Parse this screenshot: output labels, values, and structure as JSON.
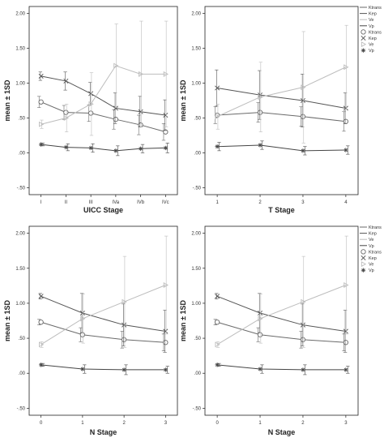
{
  "chart_data": [
    {
      "type": "line",
      "xlabel": "UICC Stage",
      "ylabel": "mean ± 1SD",
      "categories": [
        "I",
        "II",
        "III",
        "IVa",
        "IVb",
        "IVc"
      ],
      "y_ticks": [
        "-.50",
        ".00",
        ".50",
        "1.00",
        "1.50",
        "2.00"
      ],
      "ylim": [
        -0.6,
        2.1
      ],
      "grid": false,
      "series": [
        {
          "name": "Ktrans",
          "marker": "circle",
          "color": "#6a6a6a",
          "values": [
            0.73,
            0.58,
            0.57,
            0.48,
            0.4,
            0.3
          ],
          "sd": [
            0.08,
            0.1,
            0.12,
            0.14,
            0.14,
            0.12
          ]
        },
        {
          "name": "Kep",
          "marker": "x",
          "color": "#555555",
          "values": [
            1.1,
            1.03,
            0.85,
            0.64,
            0.59,
            0.54
          ],
          "sd": [
            0.06,
            0.13,
            0.16,
            0.22,
            0.22,
            0.22
          ]
        },
        {
          "name": "Ve",
          "marker": "tri",
          "color": "#bdbdbd",
          "values": [
            0.41,
            0.5,
            0.7,
            1.25,
            1.13,
            1.13
          ],
          "sd": [
            0.06,
            0.2,
            0.45,
            0.6,
            0.76,
            0.76
          ]
        },
        {
          "name": "Vp",
          "marker": "star",
          "color": "#454545",
          "values": [
            0.12,
            0.08,
            0.07,
            0.03,
            0.06,
            0.07
          ],
          "sd": [
            0.02,
            0.05,
            0.06,
            0.07,
            0.06,
            0.07
          ]
        }
      ]
    },
    {
      "type": "line",
      "xlabel": "T Stage",
      "ylabel": "mean ± 1SD",
      "categories": [
        "1",
        "2",
        "3",
        "4"
      ],
      "y_ticks": [
        "-.50",
        ".00",
        ".50",
        "1.00",
        "1.50",
        "2.00"
      ],
      "ylim": [
        -0.6,
        2.1
      ],
      "grid": false,
      "legend": {
        "position": "top-right",
        "lines": [
          "Ktrans",
          "Kep",
          "Ve",
          "Vp"
        ],
        "markers": [
          "Ktrans",
          "Kep",
          "Ve",
          "Vp"
        ]
      },
      "series": [
        {
          "name": "Ktrans",
          "marker": "circle",
          "color": "#6a6a6a",
          "values": [
            0.54,
            0.58,
            0.52,
            0.45
          ],
          "sd": [
            0.12,
            0.14,
            0.14,
            0.14
          ]
        },
        {
          "name": "Kep",
          "marker": "x",
          "color": "#555555",
          "values": [
            0.93,
            0.83,
            0.75,
            0.64
          ],
          "sd": [
            0.26,
            0.35,
            0.38,
            0.22
          ]
        },
        {
          "name": "Ve",
          "marker": "tri",
          "color": "#bdbdbd",
          "values": [
            0.52,
            0.8,
            0.94,
            1.23
          ],
          "sd": [
            0.18,
            0.5,
            0.8,
            0.6
          ]
        },
        {
          "name": "Vp",
          "marker": "star",
          "color": "#454545",
          "values": [
            0.09,
            0.11,
            0.03,
            0.04
          ],
          "sd": [
            0.06,
            0.06,
            0.06,
            0.06
          ]
        }
      ]
    },
    {
      "type": "line",
      "xlabel": "N Stage",
      "ylabel": "mean ± 1SD",
      "categories": [
        "0",
        "1",
        "2",
        "3"
      ],
      "y_ticks": [
        "-.50",
        ".00",
        ".50",
        "1.00",
        "1.50",
        "2.00"
      ],
      "ylim": [
        -0.6,
        2.1
      ],
      "grid": false,
      "series": [
        {
          "name": "Ktrans",
          "marker": "circle",
          "color": "#6a6a6a",
          "values": [
            0.73,
            0.55,
            0.48,
            0.44
          ],
          "sd": [
            0.04,
            0.1,
            0.12,
            0.12
          ]
        },
        {
          "name": "Kep",
          "marker": "x",
          "color": "#555555",
          "values": [
            1.1,
            0.86,
            0.69,
            0.6
          ],
          "sd": [
            0.04,
            0.28,
            0.3,
            0.3
          ]
        },
        {
          "name": "Ve",
          "marker": "tri",
          "color": "#bdbdbd",
          "values": [
            0.41,
            0.78,
            1.02,
            1.26
          ],
          "sd": [
            0.04,
            0.35,
            0.65,
            0.7
          ]
        },
        {
          "name": "Vp",
          "marker": "star",
          "color": "#454545",
          "values": [
            0.12,
            0.06,
            0.05,
            0.05
          ],
          "sd": [
            0.02,
            0.06,
            0.07,
            0.05
          ]
        }
      ]
    },
    {
      "type": "line",
      "xlabel": "N Stage",
      "ylabel": "mean ± 1SD",
      "categories": [
        "0",
        "1",
        "2",
        "3"
      ],
      "y_ticks": [
        "-.50",
        ".00",
        ".50",
        "1.00",
        "1.50",
        "2.00"
      ],
      "ylim": [
        -0.6,
        2.1
      ],
      "grid": false,
      "legend": {
        "position": "top-right",
        "lines": [
          "Ktrans",
          "Kep",
          "Ve",
          "Vp"
        ],
        "markers": [
          "Ktrans",
          "Kep",
          "Ve",
          "Vp"
        ]
      },
      "series": [
        {
          "name": "Ktrans",
          "marker": "circle",
          "color": "#6a6a6a",
          "values": [
            0.73,
            0.55,
            0.48,
            0.44
          ],
          "sd": [
            0.04,
            0.1,
            0.12,
            0.12
          ]
        },
        {
          "name": "Kep",
          "marker": "x",
          "color": "#555555",
          "values": [
            1.1,
            0.86,
            0.69,
            0.6
          ],
          "sd": [
            0.04,
            0.28,
            0.3,
            0.3
          ]
        },
        {
          "name": "Ve",
          "marker": "tri",
          "color": "#bdbdbd",
          "values": [
            0.41,
            0.78,
            1.02,
            1.26
          ],
          "sd": [
            0.04,
            0.35,
            0.65,
            0.7
          ]
        },
        {
          "name": "Vp",
          "marker": "star",
          "color": "#454545",
          "values": [
            0.12,
            0.06,
            0.05,
            0.05
          ],
          "sd": [
            0.02,
            0.06,
            0.07,
            0.05
          ]
        }
      ]
    }
  ]
}
